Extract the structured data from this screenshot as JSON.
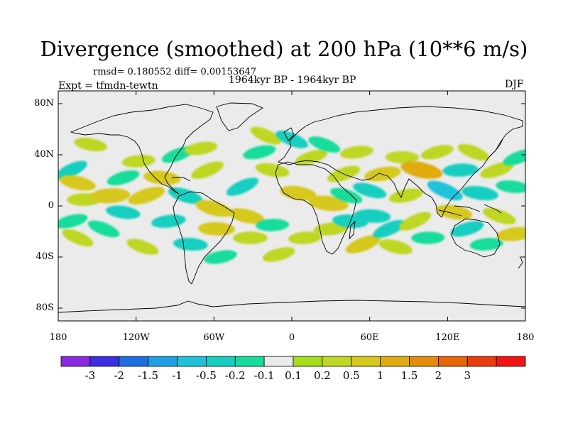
{
  "title": "Divergence (smoothed) at 200 hPa (10**6 m/s)",
  "stats_text": "rmsd= 0.180552  diff= 0.00153647",
  "experiment_text": "Expt = tfmdn-tewtn",
  "period_text": "1964kyr BP - 1964kyr BP",
  "season_text": "DJF",
  "map": {
    "projection": "cylindrical equidistant",
    "lon_range": [
      -180,
      180
    ],
    "lat_range": [
      -90,
      90
    ],
    "y_tick_labels": [
      {
        "lat": 80,
        "label": "80N"
      },
      {
        "lat": 40,
        "label": "40N"
      },
      {
        "lat": 0,
        "label": "0"
      },
      {
        "lat": -40,
        "label": "40S"
      },
      {
        "lat": -80,
        "label": "80S"
      }
    ],
    "x_tick_labels": [
      {
        "lon": -180,
        "label": "180"
      },
      {
        "lon": -120,
        "label": "120W"
      },
      {
        "lon": -60,
        "label": "60W"
      },
      {
        "lon": 0,
        "label": "0"
      },
      {
        "lon": 60,
        "label": "60E"
      },
      {
        "lon": 120,
        "label": "120E"
      },
      {
        "lon": 180,
        "label": "180"
      }
    ]
  },
  "colorbar": {
    "colors": [
      "#8a2be2",
      "#3b2ee0",
      "#1f6fe0",
      "#1fa0e6",
      "#21c2d8",
      "#15cfc0",
      "#18dc9c",
      "#ebebeb",
      "#a5dc1c",
      "#bfd624",
      "#d6c81c",
      "#e0ac10",
      "#e68c0a",
      "#e8660a",
      "#ea3c0c",
      "#f01414"
    ],
    "labels": [
      "-3",
      "-2",
      "-1.5",
      "-1",
      "-0.5",
      "-0.2",
      "-0.1",
      "0.1",
      "0.2",
      "0.5",
      "1",
      "1.5",
      "2",
      "3"
    ]
  },
  "chart_data": {
    "type": "heatmap",
    "title": "Divergence (smoothed) at 200 hPa (10**6 m/s)",
    "variable": "Divergence (smoothed)",
    "level": "200 hPa",
    "units": "10**6 m/s",
    "season": "DJF",
    "contour_levels": [
      -3,
      -2,
      -1.5,
      -1,
      -0.5,
      -0.2,
      -0.1,
      0.1,
      0.2,
      0.5,
      1,
      1.5,
      2,
      3
    ],
    "xlim": [
      -180,
      180
    ],
    "ylim": [
      -90,
      90
    ],
    "regions": [
      {
        "lon": -170,
        "lat": 28,
        "value": -0.3
      },
      {
        "lon": -165,
        "lat": 18,
        "value": 0.5
      },
      {
        "lon": -160,
        "lat": 5,
        "value": 0.3
      },
      {
        "lon": -170,
        "lat": -12,
        "value": -0.2
      },
      {
        "lon": -165,
        "lat": -25,
        "value": 0.2
      },
      {
        "lon": -155,
        "lat": 48,
        "value": 0.2
      },
      {
        "lon": -140,
        "lat": 8,
        "value": 0.8
      },
      {
        "lon": -130,
        "lat": 22,
        "value": -0.2
      },
      {
        "lon": -145,
        "lat": -18,
        "value": -0.2
      },
      {
        "lon": -130,
        "lat": -5,
        "value": -0.3
      },
      {
        "lon": -118,
        "lat": 35,
        "value": 0.2
      },
      {
        "lon": -112,
        "lat": 8,
        "value": 0.6
      },
      {
        "lon": -115,
        "lat": -32,
        "value": 0.2
      },
      {
        "lon": -100,
        "lat": 22,
        "value": 0.5
      },
      {
        "lon": -95,
        "lat": -12,
        "value": -0.3
      },
      {
        "lon": -88,
        "lat": 40,
        "value": -0.2
      },
      {
        "lon": -82,
        "lat": 8,
        "value": -0.4
      },
      {
        "lon": -78,
        "lat": -30,
        "value": -0.3
      },
      {
        "lon": -70,
        "lat": 45,
        "value": 0.2
      },
      {
        "lon": -65,
        "lat": 28,
        "value": 0.3
      },
      {
        "lon": -60,
        "lat": -2,
        "value": 0.6
      },
      {
        "lon": -58,
        "lat": -18,
        "value": 0.5
      },
      {
        "lon": -55,
        "lat": -40,
        "value": -0.2
      },
      {
        "lon": -38,
        "lat": 15,
        "value": -0.3
      },
      {
        "lon": -35,
        "lat": -8,
        "value": 0.5
      },
      {
        "lon": -32,
        "lat": -25,
        "value": 0.3
      },
      {
        "lon": -25,
        "lat": 42,
        "value": -0.2
      },
      {
        "lon": -20,
        "lat": 55,
        "value": 0.2
      },
      {
        "lon": -15,
        "lat": 28,
        "value": 0.3
      },
      {
        "lon": -15,
        "lat": -15,
        "value": -0.2
      },
      {
        "lon": -10,
        "lat": -38,
        "value": 0.2
      },
      {
        "lon": 0,
        "lat": 52,
        "value": -0.3
      },
      {
        "lon": 5,
        "lat": 10,
        "value": 0.5
      },
      {
        "lon": 10,
        "lat": -25,
        "value": 0.2
      },
      {
        "lon": 15,
        "lat": 38,
        "value": 0.2
      },
      {
        "lon": 25,
        "lat": 48,
        "value": -0.2
      },
      {
        "lon": 28,
        "lat": 2,
        "value": 0.8
      },
      {
        "lon": 30,
        "lat": -18,
        "value": 0.3
      },
      {
        "lon": 40,
        "lat": 25,
        "value": 0.3
      },
      {
        "lon": 42,
        "lat": 8,
        "value": -0.2
      },
      {
        "lon": 45,
        "lat": -12,
        "value": -0.4
      },
      {
        "lon": 50,
        "lat": 42,
        "value": 0.2
      },
      {
        "lon": 55,
        "lat": -30,
        "value": 0.5
      },
      {
        "lon": 60,
        "lat": 12,
        "value": -0.3
      },
      {
        "lon": 62,
        "lat": -8,
        "value": -0.5
      },
      {
        "lon": 70,
        "lat": 25,
        "value": 0.5
      },
      {
        "lon": 75,
        "lat": -18,
        "value": -0.3
      },
      {
        "lon": 80,
        "lat": -32,
        "value": 0.3
      },
      {
        "lon": 85,
        "lat": 38,
        "value": 0.2
      },
      {
        "lon": 88,
        "lat": 8,
        "value": 0.3
      },
      {
        "lon": 95,
        "lat": -12,
        "value": 0.3
      },
      {
        "lon": 100,
        "lat": 28,
        "value": 1.0
      },
      {
        "lon": 105,
        "lat": -25,
        "value": -0.2
      },
      {
        "lon": 112,
        "lat": 42,
        "value": 0.2
      },
      {
        "lon": 118,
        "lat": 12,
        "value": -0.6
      },
      {
        "lon": 125,
        "lat": -5,
        "value": 0.5
      },
      {
        "lon": 130,
        "lat": 28,
        "value": -0.4
      },
      {
        "lon": 135,
        "lat": -18,
        "value": -0.3
      },
      {
        "lon": 140,
        "lat": 42,
        "value": 0.2
      },
      {
        "lon": 145,
        "lat": 10,
        "value": -0.5
      },
      {
        "lon": 150,
        "lat": -30,
        "value": -0.2
      },
      {
        "lon": 158,
        "lat": 28,
        "value": 0.3
      },
      {
        "lon": 160,
        "lat": -8,
        "value": 0.3
      },
      {
        "lon": 170,
        "lat": 15,
        "value": -0.2
      },
      {
        "lon": 172,
        "lat": -22,
        "value": 0.5
      },
      {
        "lon": 175,
        "lat": 38,
        "value": -0.2
      }
    ]
  }
}
